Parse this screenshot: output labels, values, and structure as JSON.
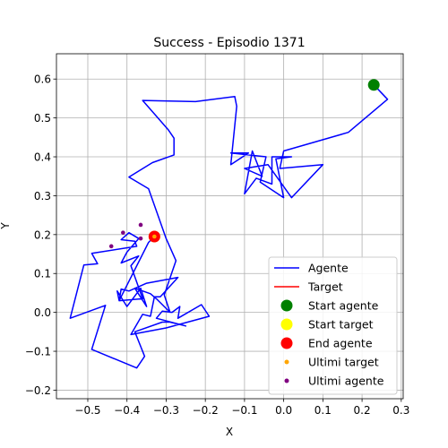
{
  "chart_data": {
    "type": "line",
    "title": "Success - Episodio 1371",
    "xlabel": "X",
    "ylabel": "Y",
    "xlim": [
      -0.58,
      0.305
    ],
    "ylim": [
      -0.222,
      0.665
    ],
    "xticks": [
      -0.5,
      -0.4,
      -0.3,
      -0.2,
      -0.1,
      0.0,
      0.1,
      0.2,
      0.3
    ],
    "xtick_labels": [
      "−0.5",
      "−0.4",
      "−0.3",
      "−0.2",
      "−0.1",
      "0.0",
      "0.1",
      "0.2",
      "0.3"
    ],
    "yticks": [
      -0.2,
      -0.1,
      0.0,
      0.1,
      0.2,
      0.3,
      0.4,
      0.5,
      0.6
    ],
    "ytick_labels": [
      "−0.2",
      "−0.1",
      "0.0",
      "0.1",
      "0.2",
      "0.3",
      "0.4",
      "0.5",
      "0.6"
    ],
    "grid": true,
    "legend_position": "bottom-right",
    "legend": [
      {
        "label": "Agente",
        "kind": "line",
        "color": "#0000ff"
      },
      {
        "label": "Target",
        "kind": "line",
        "color": "#ff0000"
      },
      {
        "label": "Start agente",
        "kind": "marker",
        "color": "#008000"
      },
      {
        "label": "Start target",
        "kind": "marker",
        "color": "#ffff00"
      },
      {
        "label": "End agente",
        "kind": "marker",
        "color": "#ff0000"
      },
      {
        "label": "Ultimi target",
        "kind": "small-marker",
        "color": "#ffa500"
      },
      {
        "label": "Ultimi agente",
        "kind": "small-marker",
        "color": "#800080"
      }
    ],
    "series": [
      {
        "name": "Agente",
        "color": "#0000ff",
        "points": [
          [
            0.23,
            0.585
          ],
          [
            0.265,
            0.548
          ],
          [
            0.165,
            0.463
          ],
          [
            0.0,
            0.415
          ],
          [
            -0.01,
            0.37
          ],
          [
            0.1,
            0.38
          ],
          [
            0.02,
            0.295
          ],
          [
            -0.04,
            0.38
          ],
          [
            -0.1,
            0.37
          ],
          [
            -0.055,
            0.35
          ],
          [
            -0.08,
            0.415
          ],
          [
            -0.1,
            0.305
          ],
          [
            -0.07,
            0.345
          ],
          [
            -0.03,
            0.33
          ],
          [
            -0.03,
            0.4
          ],
          [
            0.02,
            0.4
          ],
          [
            -0.02,
            0.395
          ],
          [
            0.0,
            0.295
          ],
          [
            -0.06,
            0.335
          ],
          [
            -0.045,
            0.4
          ],
          [
            -0.135,
            0.41
          ],
          [
            -0.09,
            0.41
          ],
          [
            -0.135,
            0.38
          ],
          [
            -0.12,
            0.53
          ],
          [
            -0.125,
            0.555
          ],
          [
            -0.225,
            0.542
          ],
          [
            -0.36,
            0.545
          ],
          [
            -0.295,
            0.47
          ],
          [
            -0.28,
            0.448
          ],
          [
            -0.28,
            0.405
          ],
          [
            -0.335,
            0.385
          ],
          [
            -0.395,
            0.348
          ],
          [
            -0.345,
            0.318
          ],
          [
            -0.3,
            0.19
          ],
          [
            -0.275,
            0.133
          ],
          [
            -0.305,
            0.045
          ],
          [
            -0.29,
            0.0
          ],
          [
            -0.325,
            0.035
          ],
          [
            -0.34,
            0.048
          ],
          [
            -0.38,
            0.062
          ],
          [
            -0.35,
            0.015
          ],
          [
            -0.365,
            0.062
          ],
          [
            -0.4,
            0.015
          ],
          [
            -0.425,
            0.055
          ],
          [
            -0.42,
            0.03
          ],
          [
            -0.36,
            0.035
          ],
          [
            -0.39,
            0.12
          ],
          [
            -0.37,
            0.145
          ],
          [
            -0.415,
            0.127
          ],
          [
            -0.4,
            0.155
          ],
          [
            -0.37,
            0.19
          ],
          [
            -0.395,
            0.205
          ],
          [
            -0.415,
            0.187
          ],
          [
            -0.38,
            0.183
          ],
          [
            -0.375,
            0.17
          ],
          [
            -0.49,
            0.152
          ],
          [
            -0.475,
            0.125
          ],
          [
            -0.51,
            0.122
          ],
          [
            -0.545,
            -0.015
          ],
          [
            -0.455,
            0.018
          ],
          [
            -0.49,
            -0.095
          ],
          [
            -0.375,
            -0.143
          ],
          [
            -0.355,
            -0.113
          ],
          [
            -0.38,
            -0.05
          ],
          [
            -0.31,
            -0.025
          ],
          [
            -0.29,
            -0.025
          ],
          [
            -0.25,
            -0.035
          ],
          [
            -0.325,
            -0.015
          ],
          [
            -0.31,
            0.003
          ],
          [
            -0.285,
            0.0
          ],
          [
            -0.265,
            0.015
          ],
          [
            -0.27,
            -0.015
          ],
          [
            -0.21,
            0.02
          ],
          [
            -0.19,
            -0.01
          ],
          [
            -0.3,
            -0.04
          ],
          [
            -0.39,
            -0.057
          ],
          [
            -0.36,
            -0.005
          ],
          [
            -0.34,
            -0.01
          ],
          [
            -0.33,
            0.04
          ],
          [
            -0.315,
            0.04
          ],
          [
            -0.27,
            0.09
          ],
          [
            -0.35,
            0.075
          ],
          [
            -0.395,
            0.055
          ],
          [
            -0.415,
            0.06
          ],
          [
            -0.42,
            0.03
          ],
          [
            -0.345,
            0.18
          ],
          [
            -0.33,
            0.195
          ]
        ]
      }
    ],
    "markers": [
      {
        "name": "Start agente",
        "x": 0.23,
        "y": 0.585,
        "color": "#008000"
      },
      {
        "name": "Start target",
        "x": -0.33,
        "y": 0.195,
        "color": "#ffff00"
      },
      {
        "name": "End agente",
        "x": -0.33,
        "y": 0.195,
        "color": "#ff0000"
      }
    ],
    "ultimi_target": [
      [
        -0.33,
        0.195
      ]
    ],
    "ultimi_agente": [
      [
        -0.365,
        0.225
      ],
      [
        -0.41,
        0.205
      ],
      [
        -0.44,
        0.17
      ],
      [
        -0.365,
        0.19
      ]
    ]
  }
}
